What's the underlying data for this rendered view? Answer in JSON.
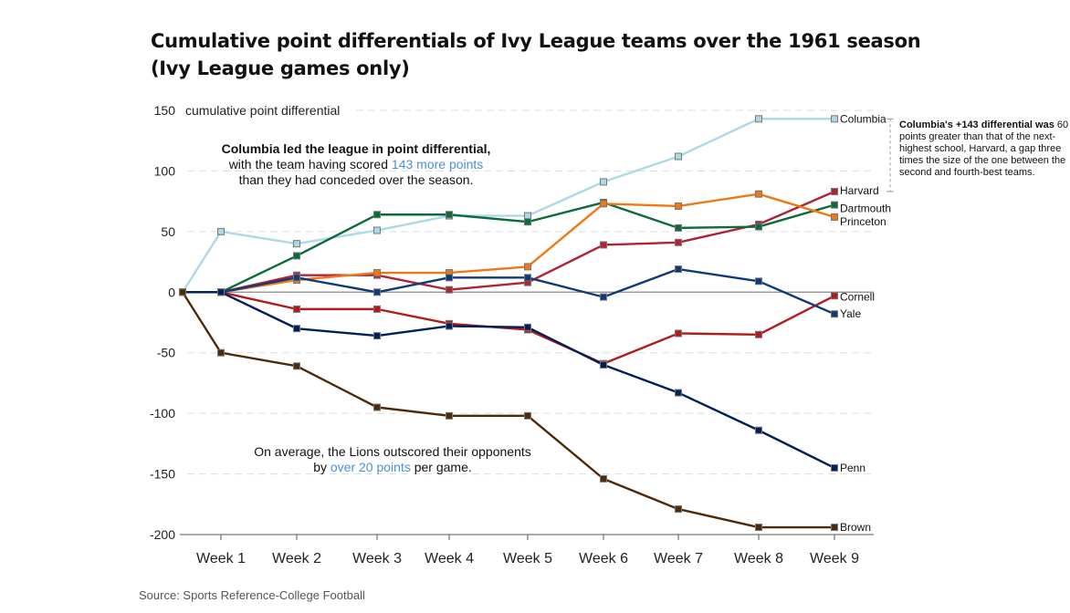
{
  "title_line1": "Cumulative point differentials of Ivy League teams over the 1961 season",
  "title_line2": "(Ivy League games only)",
  "annotation_top": {
    "bold": "Columbia led the league in point differential,",
    "pre": "with the team having scored ",
    "highlight": "143 more points",
    "post": "than they had conceded over the season."
  },
  "annotation_bottom": {
    "pre": "On average, the Lions outscored their opponents",
    "pre2": "by ",
    "highlight": "over 20 points",
    "post": " per game."
  },
  "side_note": {
    "bold": "Columbia's +143 differential was",
    "rest": "60 points greater than that of the next-highest school, Harvard, a gap three times the size of the one between the second and fourth-best teams."
  },
  "source": "Source: Sports Reference-College Football",
  "colors": {
    "grid": "#dddddd",
    "zero": "#888888",
    "highlight": "#4a90d9"
  },
  "chart_data": {
    "type": "line",
    "title": "Cumulative point differentials of Ivy League teams over the 1961 season (Ivy League games only)",
    "ylabel": "cumulative point differential",
    "xlabel": "",
    "categories": [
      "",
      "Week 1",
      "Week 2",
      "Week 3",
      "Week 4",
      "Week 5",
      "Week 6",
      "Week 7",
      "Week 8",
      "Week 9"
    ],
    "ylim": [
      -200,
      150
    ],
    "yticks": [
      150,
      100,
      50,
      0,
      -50,
      -100,
      -150,
      -200
    ],
    "ylabel_tick": 150,
    "grid": true,
    "series": [
      {
        "name": "Columbia",
        "color": "#add8e6",
        "values": [
          0,
          50,
          40,
          51,
          63,
          63,
          91,
          112,
          143,
          143
        ]
      },
      {
        "name": "Harvard",
        "color": "#b22234",
        "values": [
          0,
          0,
          14,
          14,
          2,
          8,
          39,
          41,
          56,
          83
        ]
      },
      {
        "name": "Dartmouth",
        "color": "#0b6b3a",
        "values": [
          0,
          0,
          30,
          64,
          64,
          58,
          74,
          53,
          54,
          72
        ]
      },
      {
        "name": "Princeton",
        "color": "#f07814",
        "values": [
          0,
          0,
          10,
          16,
          16,
          21,
          73,
          71,
          81,
          62
        ]
      },
      {
        "name": "Cornell",
        "color": "#b31b1b",
        "values": [
          0,
          0,
          -14,
          -14,
          -26,
          -31,
          -59,
          -34,
          -35,
          -3
        ]
      },
      {
        "name": "Yale",
        "color": "#0f3a7a",
        "values": [
          0,
          0,
          12,
          0,
          12,
          12,
          -4,
          19,
          9,
          -18
        ]
      },
      {
        "name": "Penn",
        "color": "#011f5b",
        "values": [
          0,
          0,
          -30,
          -36,
          -28,
          -29,
          -60,
          -83,
          -114,
          -145
        ]
      },
      {
        "name": "Brown",
        "color": "#4e2a0a",
        "values": [
          0,
          -50,
          -61,
          -95,
          -102,
          -102,
          -154,
          -179,
          -194,
          -194
        ]
      }
    ]
  }
}
